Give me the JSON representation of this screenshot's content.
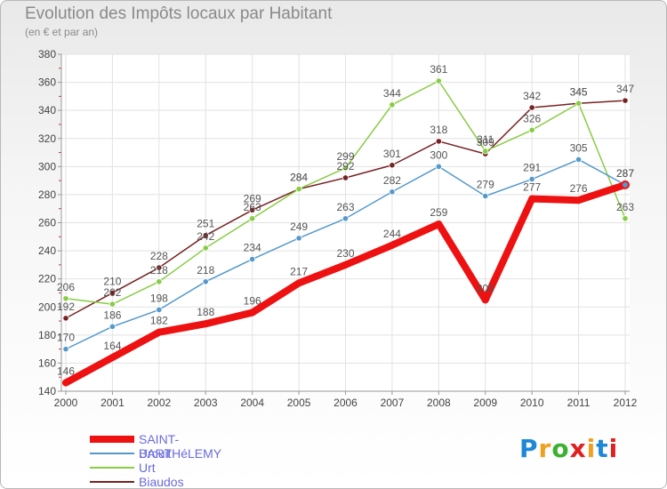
{
  "header": {
    "title": "Evolution des Impôts locaux par Habitant",
    "subtitle": "(en € et par an)"
  },
  "logo": {
    "text": "Proxiti",
    "colors": [
      "#1e88d8",
      "#f0a020",
      "#3cb030",
      "#e02020",
      "#f0a020",
      "#1e88d8",
      "#e02020"
    ]
  },
  "chart_data": {
    "type": "line",
    "x": [
      "2000",
      "2001",
      "2002",
      "2003",
      "2004",
      "2005",
      "2006",
      "2007",
      "2008",
      "2009",
      "2010",
      "2011",
      "2012"
    ],
    "ylim": [
      140,
      380
    ],
    "yticks": [
      140,
      160,
      180,
      200,
      220,
      240,
      260,
      280,
      300,
      320,
      340,
      360,
      380
    ],
    "grid": true,
    "legend_position": "bottom-left",
    "series": [
      {
        "name": "SAINT-BARTHéLEMY",
        "color": "#ee1111",
        "values": [
          146,
          164,
          182,
          188,
          196,
          217,
          230,
          244,
          259,
          205,
          277,
          276,
          287
        ]
      },
      {
        "name": "Urcuit",
        "color": "#5599cc",
        "values": [
          170,
          186,
          198,
          218,
          234,
          249,
          263,
          282,
          300,
          279,
          291,
          305,
          287
        ]
      },
      {
        "name": "Urt",
        "color": "#88cc44",
        "values": [
          206,
          202,
          218,
          242,
          263,
          284,
          299,
          344,
          361,
          311,
          326,
          345,
          263
        ]
      },
      {
        "name": "Biaudos",
        "color": "#772222",
        "values": [
          192,
          210,
          228,
          251,
          269,
          284,
          292,
          301,
          318,
          309,
          342,
          345,
          347
        ]
      }
    ]
  }
}
